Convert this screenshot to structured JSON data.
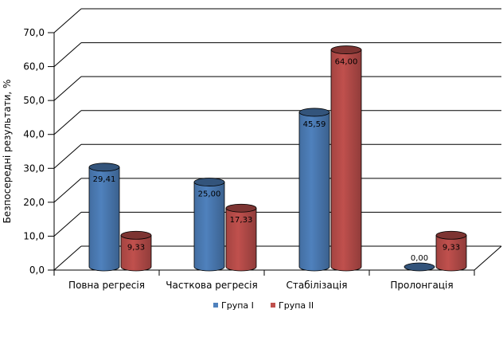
{
  "chart_data": {
    "type": "bar",
    "categories": [
      "Повна регресія",
      "Часткова регресія",
      "Стабілізація",
      "Пролонгація"
    ],
    "series": [
      {
        "name": "Група І",
        "color": "#4f81bd",
        "values": [
          29.41,
          25.0,
          45.59,
          0.0
        ],
        "labels": [
          "29,41",
          "25,00",
          "45,59",
          "0,00"
        ]
      },
      {
        "name": "Група ІІ",
        "color": "#c0504d",
        "values": [
          9.33,
          17.33,
          64.0,
          9.33
        ],
        "labels": [
          "9,33",
          "17,33",
          "64,00",
          "9,33"
        ]
      }
    ],
    "ylabel": "Безпосередні результати, %",
    "ylim": [
      0,
      70
    ],
    "yticks": [
      0,
      10,
      20,
      30,
      40,
      50,
      60,
      70
    ],
    "ytick_labels": [
      "0,0",
      "10,0",
      "20,0",
      "30,0",
      "40,0",
      "50,0",
      "60,0",
      "70,0"
    ],
    "grid": true,
    "legend_position": "bottom",
    "style": "3d-cylinder"
  }
}
